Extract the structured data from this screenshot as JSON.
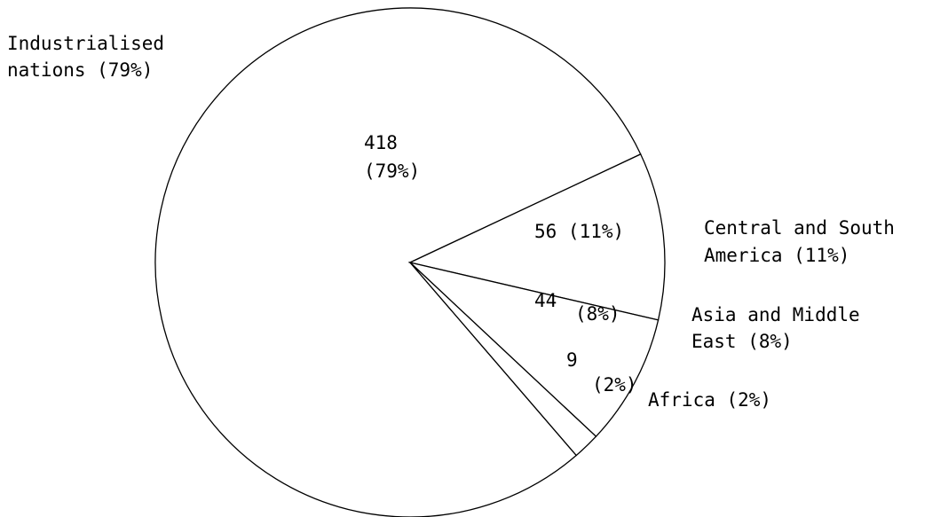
{
  "chart_data": {
    "type": "pie",
    "title": "",
    "slices": [
      {
        "name": "Industrialised nations",
        "value": 418,
        "percent": "79%",
        "outer_label": [
          "Industrialised",
          "nations (79%)"
        ],
        "value_text": "418",
        "percent_text": "(79%)"
      },
      {
        "name": "Central and South America",
        "value": 56,
        "percent": "11%",
        "outer_label": [
          "Central and South",
          "America (11%)"
        ],
        "value_text": "56 (11%)"
      },
      {
        "name": "Asia and Middle East",
        "value": 44,
        "percent": "8%",
        "outer_label": [
          "Asia and Middle",
          "East (8%)"
        ],
        "value_text": "44",
        "percent_text": "(8%)"
      },
      {
        "name": "Africa",
        "value": 9,
        "percent": "2%",
        "outer_label": [
          "Africa (2%)"
        ],
        "value_text": "9",
        "percent_text": "(2%)"
      }
    ],
    "colors": {
      "stroke": "#000000",
      "fill": "#ffffff"
    }
  }
}
